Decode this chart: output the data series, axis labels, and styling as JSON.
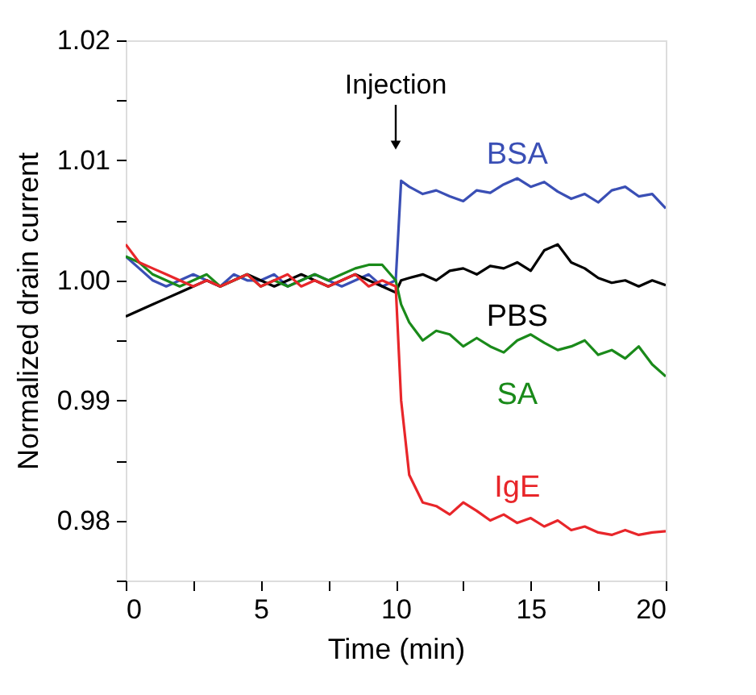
{
  "chart_data": {
    "type": "line",
    "xlabel": "Time (min)",
    "ylabel": "Normalized drain current",
    "x": [
      0,
      0.5,
      1,
      1.5,
      2,
      2.5,
      3,
      3.5,
      4,
      4.5,
      5,
      5.5,
      6,
      6.5,
      7,
      7.5,
      8,
      8.5,
      9,
      9.5,
      10,
      10.2,
      10.5,
      11,
      11.5,
      12,
      12.5,
      13,
      13.5,
      14,
      14.5,
      15,
      15.5,
      16,
      16.5,
      17,
      17.5,
      18,
      18.5,
      19,
      19.5,
      20
    ],
    "series": [
      {
        "name": "BSA",
        "color": "#3a4fb5",
        "values": [
          1.002,
          1.001,
          1.0,
          0.9995,
          1.0,
          1.0005,
          1.0,
          0.9995,
          1.0005,
          1.0,
          1.0,
          1.0005,
          0.9995,
          1.0,
          1.0005,
          1.0,
          0.9995,
          1.0,
          1.0005,
          0.9995,
          1.0,
          1.0083,
          1.0078,
          1.0072,
          1.0075,
          1.007,
          1.0066,
          1.0075,
          1.0073,
          1.008,
          1.0085,
          1.0078,
          1.0082,
          1.0074,
          1.0068,
          1.0072,
          1.0065,
          1.0075,
          1.0078,
          1.007,
          1.0072,
          1.006
        ]
      },
      {
        "name": "PBS",
        "color": "#000000",
        "values": [
          0.997,
          0.9975,
          0.998,
          0.9985,
          0.999,
          0.9995,
          1.0,
          0.9995,
          1.0,
          1.0005,
          1.0,
          0.9995,
          1.0,
          1.0005,
          1.0,
          0.9995,
          1.0,
          1.0005,
          1.0,
          0.9995,
          0.999,
          1.0,
          1.0002,
          1.0005,
          1.0,
          1.0008,
          1.001,
          1.0005,
          1.0012,
          1.001,
          1.0015,
          1.0008,
          1.0025,
          1.003,
          1.0015,
          1.001,
          1.0002,
          0.9998,
          1.0,
          0.9995,
          1.0,
          0.9996
        ]
      },
      {
        "name": "SA",
        "color": "#1a8a1a",
        "values": [
          1.002,
          1.0015,
          1.0005,
          1.0,
          0.9995,
          1.0,
          1.0005,
          0.9995,
          1.0,
          1.0005,
          0.9995,
          1.0,
          0.9995,
          1.0,
          1.0005,
          1.0,
          1.0005,
          1.001,
          1.0013,
          1.0013,
          1.0,
          0.998,
          0.9965,
          0.995,
          0.9958,
          0.9955,
          0.9945,
          0.9952,
          0.9945,
          0.994,
          0.995,
          0.9955,
          0.9948,
          0.9942,
          0.9945,
          0.995,
          0.9938,
          0.9942,
          0.9935,
          0.9945,
          0.993,
          0.992
        ]
      },
      {
        "name": "IgE",
        "color": "#e8262a",
        "values": [
          1.003,
          1.0015,
          1.001,
          1.0005,
          1.0,
          0.9995,
          1.0,
          0.9995,
          1.0,
          1.0005,
          0.9995,
          1.0,
          1.0005,
          0.9995,
          1.0,
          0.9995,
          1.0,
          1.0005,
          0.9995,
          1.0,
          0.9995,
          0.99,
          0.9838,
          0.9815,
          0.9812,
          0.9805,
          0.9815,
          0.9808,
          0.98,
          0.9805,
          0.9798,
          0.9802,
          0.9795,
          0.98,
          0.9792,
          0.9795,
          0.979,
          0.9788,
          0.9792,
          0.9788,
          0.979,
          0.9791
        ]
      }
    ],
    "xlim": [
      0,
      20
    ],
    "xticks": [
      0,
      {
        "value": 2.5,
        "label": null
      },
      5,
      {
        "value": 7.5,
        "label": null
      },
      10,
      {
        "value": 12.5,
        "label": null
      },
      15,
      {
        "value": 17.5,
        "label": null
      },
      20
    ],
    "ylim": [
      0.975,
      1.02
    ],
    "yticks": [
      {
        "value": 0.975,
        "label": null
      },
      0.98,
      {
        "value": 0.985,
        "label": null
      },
      0.99,
      {
        "value": 0.995,
        "label": null
      },
      {
        "value": 1.0,
        "label": "1.00"
      },
      {
        "value": 1.005,
        "label": null
      },
      1.01,
      {
        "value": 1.015,
        "label": null
      },
      1.02
    ],
    "annotations": [
      "Injection"
    ],
    "grid": false,
    "line_style": "solid",
    "marker": "none"
  }
}
